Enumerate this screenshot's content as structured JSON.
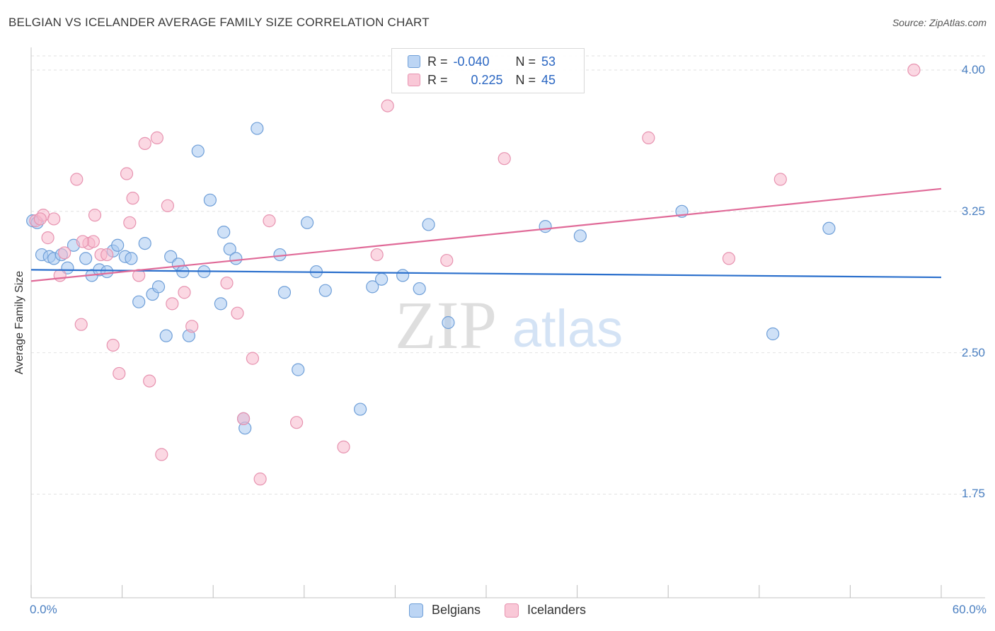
{
  "title": "BELGIAN VS ICELANDER AVERAGE FAMILY SIZE CORRELATION CHART",
  "source": "Source: ZipAtlas.com",
  "watermark": {
    "zip": "ZIP",
    "atlas": "atlas"
  },
  "colors": {
    "belgians_fill": "#a8c8f0",
    "belgians_stroke": "#6f9fd8",
    "belgians_line": "#2a6fcc",
    "icelanders_fill": "#f7b8cc",
    "icelanders_stroke": "#e793b0",
    "icelanders_line": "#e06a98",
    "tick_text": "#4a7fc1"
  },
  "legend": {
    "rows": [
      {
        "r_label": "R =",
        "r_value": "-0.040",
        "n_label": "N =",
        "n_value": "53"
      },
      {
        "r_label": "R =",
        "r_value": " 0.225",
        "n_label": "N =",
        "n_value": "45"
      }
    ]
  },
  "bottom_legend": [
    "Belgians",
    "Icelanders"
  ],
  "chart_data": {
    "type": "scatter",
    "title": "BELGIAN VS ICELANDER AVERAGE FAMILY SIZE CORRELATION CHART",
    "xlabel": "",
    "ylabel": "Average Family Size",
    "xlim": [
      0,
      60
    ],
    "ylim": [
      1.2,
      4.12
    ],
    "x_tick_labels": [
      "0.0%",
      "60.0%"
    ],
    "y_ticks": [
      1.75,
      2.5,
      3.25,
      4.0
    ],
    "y_tick_labels": [
      "1.75",
      "2.50",
      "3.25",
      "4.00"
    ],
    "grid": "horizontal dashed",
    "legend_position": "top-center",
    "series": [
      {
        "name": "Belgians",
        "r": -0.04,
        "n": 53,
        "trend": {
          "x": [
            0,
            60
          ],
          "y": [
            2.94,
            2.9
          ]
        },
        "points": [
          [
            0.1,
            3.2
          ],
          [
            0.7,
            3.02
          ],
          [
            1.2,
            3.01
          ],
          [
            1.5,
            3.0
          ],
          [
            2.0,
            3.02
          ],
          [
            2.4,
            2.95
          ],
          [
            2.8,
            3.07
          ],
          [
            3.6,
            3.0
          ],
          [
            4.0,
            2.91
          ],
          [
            4.5,
            2.94
          ],
          [
            5.0,
            2.93
          ],
          [
            5.4,
            3.04
          ],
          [
            5.7,
            3.07
          ],
          [
            6.2,
            3.01
          ],
          [
            6.6,
            3.0
          ],
          [
            7.1,
            2.77
          ],
          [
            7.5,
            3.08
          ],
          [
            8.0,
            2.81
          ],
          [
            8.4,
            2.85
          ],
          [
            8.9,
            2.59
          ],
          [
            9.2,
            3.01
          ],
          [
            9.7,
            2.97
          ],
          [
            10.0,
            2.93
          ],
          [
            10.4,
            2.59
          ],
          [
            11.0,
            3.57
          ],
          [
            11.4,
            2.93
          ],
          [
            11.8,
            3.31
          ],
          [
            12.5,
            2.76
          ],
          [
            12.7,
            3.14
          ],
          [
            13.1,
            3.05
          ],
          [
            13.5,
            3.0
          ],
          [
            14.0,
            2.15
          ],
          [
            14.1,
            2.1
          ],
          [
            14.9,
            3.69
          ],
          [
            16.4,
            3.02
          ],
          [
            16.7,
            2.82
          ],
          [
            17.6,
            2.41
          ],
          [
            18.2,
            3.19
          ],
          [
            18.8,
            2.93
          ],
          [
            19.4,
            2.83
          ],
          [
            21.7,
            2.2
          ],
          [
            22.5,
            2.85
          ],
          [
            23.1,
            2.89
          ],
          [
            24.5,
            2.91
          ],
          [
            25.6,
            2.84
          ],
          [
            26.2,
            3.18
          ],
          [
            27.5,
            2.66
          ],
          [
            33.9,
            3.17
          ],
          [
            36.2,
            3.12
          ],
          [
            42.9,
            3.25
          ],
          [
            48.9,
            2.6
          ],
          [
            52.6,
            3.16
          ],
          [
            0.4,
            3.19
          ]
        ]
      },
      {
        "name": "Icelanders",
        "r": 0.225,
        "n": 45,
        "trend": {
          "x": [
            0,
            60
          ],
          "y": [
            2.88,
            3.37
          ]
        },
        "points": [
          [
            0.3,
            3.2
          ],
          [
            0.8,
            3.23
          ],
          [
            1.1,
            3.11
          ],
          [
            1.5,
            3.21
          ],
          [
            1.9,
            2.91
          ],
          [
            2.2,
            3.03
          ],
          [
            3.0,
            3.42
          ],
          [
            3.3,
            2.65
          ],
          [
            3.8,
            3.08
          ],
          [
            4.2,
            3.23
          ],
          [
            4.6,
            3.02
          ],
          [
            5.0,
            3.02
          ],
          [
            5.4,
            2.54
          ],
          [
            5.8,
            2.39
          ],
          [
            6.3,
            3.45
          ],
          [
            6.7,
            3.32
          ],
          [
            7.1,
            2.91
          ],
          [
            7.5,
            3.61
          ],
          [
            7.8,
            2.35
          ],
          [
            8.3,
            3.64
          ],
          [
            8.6,
            1.96
          ],
          [
            9.0,
            3.28
          ],
          [
            9.3,
            2.76
          ],
          [
            10.1,
            2.82
          ],
          [
            10.6,
            2.64
          ],
          [
            12.9,
            2.87
          ],
          [
            13.6,
            2.71
          ],
          [
            14.0,
            2.15
          ],
          [
            14.6,
            2.47
          ],
          [
            15.1,
            1.83
          ],
          [
            15.7,
            3.2
          ],
          [
            17.5,
            2.13
          ],
          [
            20.6,
            2.0
          ],
          [
            22.8,
            3.02
          ],
          [
            23.5,
            3.81
          ],
          [
            27.4,
            2.99
          ],
          [
            31.2,
            3.53
          ],
          [
            40.7,
            3.64
          ],
          [
            46.0,
            3.0
          ],
          [
            49.4,
            3.42
          ],
          [
            58.2,
            4.0
          ],
          [
            4.1,
            3.09
          ],
          [
            6.5,
            3.19
          ],
          [
            0.6,
            3.21
          ],
          [
            3.4,
            3.09
          ]
        ]
      }
    ]
  }
}
